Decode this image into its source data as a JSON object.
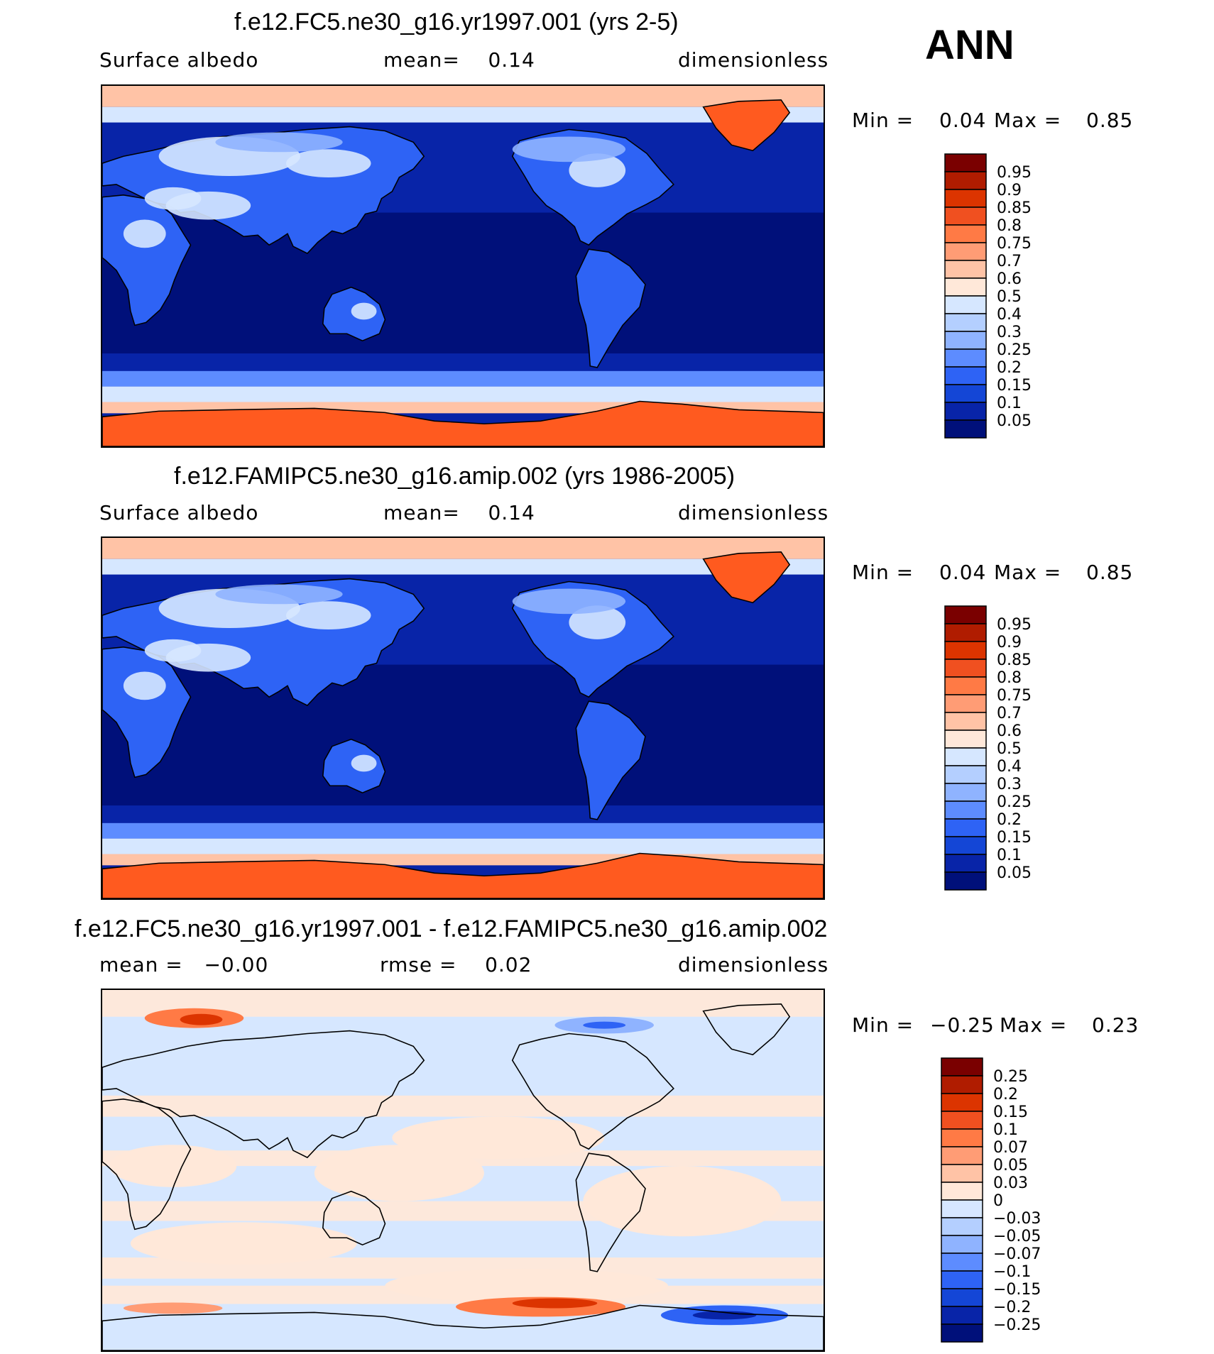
{
  "season": "ANN",
  "panels": [
    {
      "title": "f.e12.FC5.ne30_g16.yr1997.001 (yrs 2-5)",
      "left_label": "Surface albedo",
      "center_label": "mean=    0.14",
      "right_label": "dimensionless",
      "min_max": {
        "min_label": "Min =",
        "min_value": "0.04",
        "max_label": "Max =",
        "max_value": "0.85"
      },
      "colorbar_labels": [
        "0.95",
        "0.9",
        "0.85",
        "0.8",
        "0.75",
        "0.7",
        "0.6",
        "0.5",
        "0.4",
        "0.3",
        "0.25",
        "0.2",
        "0.15",
        "0.1",
        "0.05"
      ],
      "colorbar_colors": [
        "#7a0000",
        "#b01c00",
        "#dc3400",
        "#f05020",
        "#ff7a45",
        "#ff9c75",
        "#ffc3a6",
        "#ffe8d9",
        "#d6e7ff",
        "#b4cfff",
        "#8fb3ff",
        "#5d8cff",
        "#2e63f5",
        "#1446d6",
        "#0824a8",
        "#00107a"
      ],
      "field": "model"
    },
    {
      "title": "f.e12.FAMIPC5.ne30_g16.amip.002 (yrs 1986-2005)",
      "left_label": "Surface albedo",
      "center_label": "mean=    0.14",
      "right_label": "dimensionless",
      "min_max": {
        "min_label": "Min =",
        "min_value": "0.04",
        "max_label": "Max =",
        "max_value": "0.85"
      },
      "colorbar_labels": [
        "0.95",
        "0.9",
        "0.85",
        "0.8",
        "0.75",
        "0.7",
        "0.6",
        "0.5",
        "0.4",
        "0.3",
        "0.25",
        "0.2",
        "0.15",
        "0.1",
        "0.05"
      ],
      "colorbar_colors": [
        "#7a0000",
        "#b01c00",
        "#dc3400",
        "#f05020",
        "#ff7a45",
        "#ff9c75",
        "#ffc3a6",
        "#ffe8d9",
        "#d6e7ff",
        "#b4cfff",
        "#8fb3ff",
        "#5d8cff",
        "#2e63f5",
        "#1446d6",
        "#0824a8",
        "#00107a"
      ],
      "field": "obs"
    },
    {
      "title": "f.e12.FC5.ne30_g16.yr1997.001 - f.e12.FAMIPC5.ne30_g16.amip.002",
      "left_label": "mean =   −0.00",
      "center_label": "rmse =    0.02",
      "right_label": "dimensionless",
      "min_max": {
        "min_label": "Min =",
        "min_value": "−0.25",
        "max_label": "Max =",
        "max_value": "0.23"
      },
      "colorbar_labels": [
        "0.25",
        "0.2",
        "0.15",
        "0.1",
        "0.07",
        "0.05",
        "0.03",
        "0",
        "−0.03",
        "−0.05",
        "−0.07",
        "−0.1",
        "−0.15",
        "−0.2",
        "−0.25"
      ],
      "colorbar_colors": [
        "#7a0000",
        "#b01c00",
        "#dc3400",
        "#f05020",
        "#ff7a45",
        "#ff9c75",
        "#ffc3a6",
        "#ffe8d9",
        "#d6e7ff",
        "#b4cfff",
        "#8fb3ff",
        "#5d8cff",
        "#2e63f5",
        "#1446d6",
        "#0824a8",
        "#00107a"
      ],
      "field": "diff"
    }
  ],
  "colors": {
    "ocean_low": "#00107a",
    "ocean_mid": "#0824a8",
    "land_low": "#1446d6",
    "land_mid": "#2e63f5",
    "snow_light": "#d6e7ff",
    "ice": "#ff5a1f",
    "ice_edge": "#ffc3a6",
    "diff_pos": "#ffe8d9",
    "diff_neg": "#d6e7ff"
  }
}
